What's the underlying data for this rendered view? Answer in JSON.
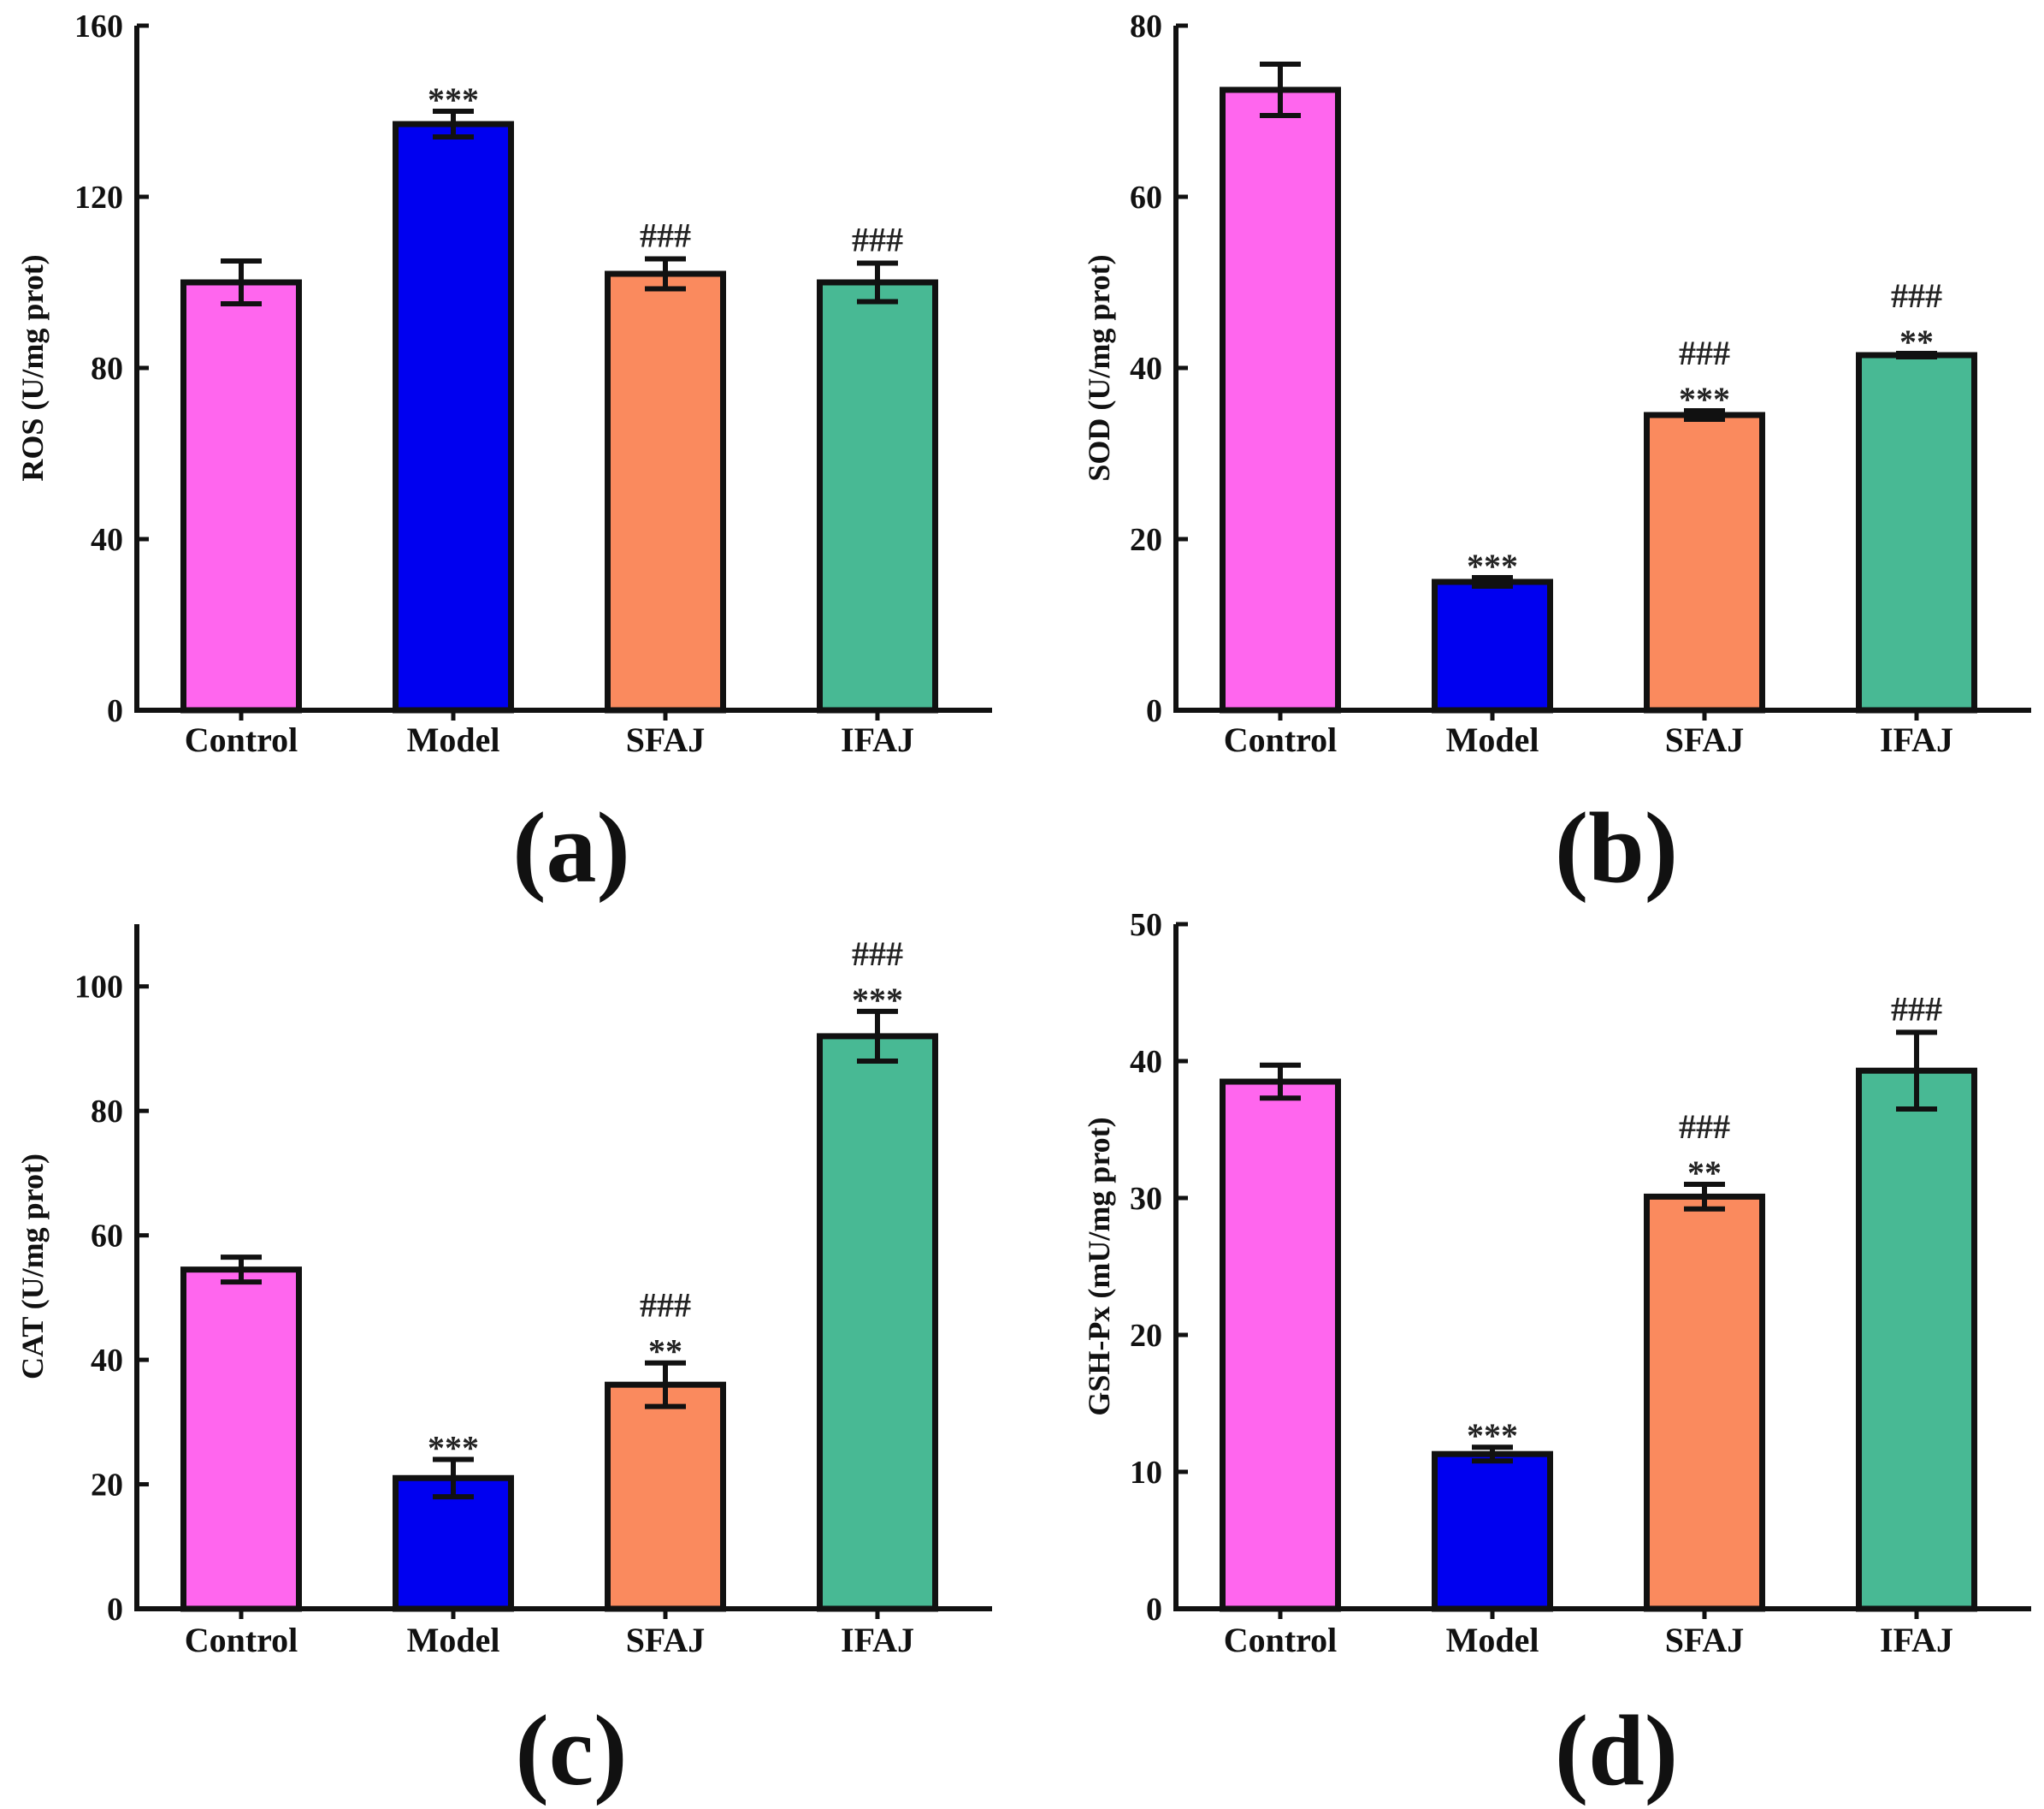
{
  "colors": {
    "Control": "#FF66EE",
    "Model": "#0000F0",
    "SFAJ": "#FA8A5E",
    "IFAJ": "#48B994"
  },
  "chart_data": [
    {
      "type": "bar",
      "panel": "(a)",
      "ylabel": "ROS (U/mg prot)",
      "categories": [
        "Control",
        "Model",
        "SFAJ",
        "IFAJ"
      ],
      "values": [
        100,
        137,
        102,
        100
      ],
      "errors": [
        5,
        3,
        3.5,
        4.5
      ],
      "yticks": [
        0,
        40,
        80,
        120,
        160
      ],
      "ylim": [
        0,
        160
      ],
      "annotations": [
        [],
        [
          "***"
        ],
        [
          "###"
        ],
        [
          "###"
        ]
      ]
    },
    {
      "type": "bar",
      "panel": "(b)",
      "ylabel": "SOD (U/mg prot)",
      "categories": [
        "Control",
        "Model",
        "SFAJ",
        "IFAJ"
      ],
      "values": [
        72.5,
        15,
        34.5,
        41.5
      ],
      "errors": [
        3,
        0.5,
        0.5,
        0.2
      ],
      "yticks": [
        0,
        20,
        40,
        60,
        80
      ],
      "ylim": [
        0,
        80
      ],
      "annotations": [
        [],
        [
          "***"
        ],
        [
          "###",
          "***"
        ],
        [
          "###",
          "**"
        ]
      ]
    },
    {
      "type": "bar",
      "panel": "(c)",
      "ylabel": "CAT (U/mg prot)",
      "categories": [
        "Control",
        "Model",
        "SFAJ",
        "IFAJ"
      ],
      "values": [
        54.5,
        21,
        36,
        92
      ],
      "errors": [
        2,
        3,
        3.5,
        4
      ],
      "yticks": [
        0,
        20,
        40,
        60,
        80,
        100
      ],
      "ylim": [
        0,
        110
      ],
      "annotations": [
        [],
        [
          "***"
        ],
        [
          "###",
          "**"
        ],
        [
          "###",
          "***"
        ]
      ]
    },
    {
      "type": "bar",
      "panel": "(d)",
      "ylabel": "GSH-Px (mU/mg prot)",
      "categories": [
        "Control",
        "Model",
        "SFAJ",
        "IFAJ"
      ],
      "values": [
        38.5,
        11.3,
        30.1,
        39.3
      ],
      "errors": [
        1.2,
        0.5,
        0.9,
        2.8
      ],
      "yticks": [
        0,
        10,
        20,
        30,
        40,
        50
      ],
      "ylim": [
        0,
        50
      ],
      "annotations": [
        [],
        [
          "***"
        ],
        [
          "###",
          "**"
        ],
        [
          "###"
        ]
      ]
    }
  ]
}
